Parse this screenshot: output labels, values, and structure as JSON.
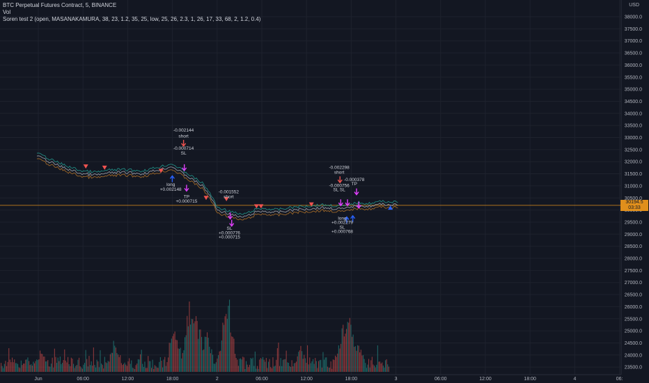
{
  "legend": {
    "symbol": "BTC Perpetual Futures Contract, 5, BINANCE",
    "vol": "Vol",
    "indicator": "Soren test 2 (open, MASANAKAMURA, 38, 23, 1.2, 35, 25, low, 25, 26, 2.3, 1, 26, 17, 33, 68, 2, 1.2, 0.4)"
  },
  "currency": "USD",
  "price_tag": {
    "price": "30194.5",
    "countdown": "03:33"
  },
  "colors": {
    "background": "#131722",
    "grid": "#1e222d",
    "line": "#e08f1c",
    "short": "#ef5350",
    "long": "#2962ff",
    "exit": "#e040fb",
    "vol_up": "#26a69a",
    "vol_down": "#ef5350"
  },
  "chart_data": {
    "type": "line",
    "ylim": [
      23450,
      38250
    ],
    "y_ticks": [
      "38000.0",
      "37500.0",
      "37000.0",
      "36500.0",
      "36000.0",
      "35500.0",
      "35000.0",
      "34500.0",
      "34000.0",
      "33500.0",
      "33000.0",
      "32500.0",
      "32000.0",
      "31500.0",
      "31000.0",
      "30500.0",
      "30000.0",
      "29500.0",
      "29000.0",
      "28500.0",
      "28000.0",
      "27500.0",
      "27000.0",
      "26500.0",
      "26000.0",
      "25500.0",
      "25000.0",
      "24500.0",
      "24000.0",
      "23500.0"
    ],
    "x_ticks": [
      "Jun",
      "06:00",
      "12:00",
      "18:00",
      "2",
      "06:00",
      "12:00",
      "18:00",
      "3",
      "06:00",
      "12:00",
      "18:00",
      "4",
      "06:"
    ],
    "current_price": 30194.5,
    "series": [
      {
        "x": [
          0,
          2,
          4,
          6,
          8,
          10,
          12,
          14,
          16,
          18,
          20,
          21,
          22,
          23,
          24,
          25,
          26,
          27,
          28,
          29,
          30,
          32,
          34,
          36,
          38,
          40,
          41,
          42,
          43,
          44,
          45,
          46,
          48
        ],
        "values": [
          32250,
          31950,
          31700,
          31500,
          31450,
          31550,
          31550,
          31500,
          31650,
          31800,
          31400,
          31200,
          31000,
          30600,
          30000,
          29900,
          29800,
          29700,
          29750,
          29900,
          29950,
          29900,
          30000,
          30050,
          30100,
          30050,
          30050,
          30150,
          30200,
          30150,
          30200,
          30250,
          30194.5
        ]
      }
    ],
    "annotations": [
      {
        "x": 19.5,
        "y": 33250,
        "text": "-0.002144",
        "kind": "label"
      },
      {
        "x": 19.5,
        "y": 33000,
        "text": "short",
        "kind": "label"
      },
      {
        "x": 19.5,
        "y": 32500,
        "text": "-0.000714",
        "kind": "label"
      },
      {
        "x": 19.5,
        "y": 32300,
        "text": "SL",
        "kind": "label"
      },
      {
        "x": 17.8,
        "y": 31000,
        "text": "long",
        "kind": "label"
      },
      {
        "x": 17.8,
        "y": 30800,
        "text": "+0.002148",
        "kind": "label"
      },
      {
        "x": 19.9,
        "y": 30500,
        "text": "TP",
        "kind": "label"
      },
      {
        "x": 19.9,
        "y": 30300,
        "text": "+0.000715",
        "kind": "label"
      },
      {
        "x": 25.5,
        "y": 30700,
        "text": "-0.001552",
        "kind": "label"
      },
      {
        "x": 25.5,
        "y": 30500,
        "text": "short",
        "kind": "label"
      },
      {
        "x": 25.6,
        "y": 29180,
        "text": "SL",
        "kind": "label"
      },
      {
        "x": 25.6,
        "y": 29000,
        "text": "+0.000776",
        "kind": "label"
      },
      {
        "x": 25.6,
        "y": 28820,
        "text": "+0.000715",
        "kind": "label"
      },
      {
        "x": 40.2,
        "y": 31700,
        "text": "-0.002298",
        "kind": "label"
      },
      {
        "x": 40.2,
        "y": 31500,
        "text": "short",
        "kind": "label"
      },
      {
        "x": 40.2,
        "y": 30950,
        "text": "-0.000756",
        "kind": "label"
      },
      {
        "x": 40.2,
        "y": 30780,
        "text": "SL SL",
        "kind": "label"
      },
      {
        "x": 42.2,
        "y": 31200,
        "text": "-0.000378",
        "kind": "label"
      },
      {
        "x": 42.2,
        "y": 31030,
        "text": "TP",
        "kind": "label"
      },
      {
        "x": 40.6,
        "y": 29600,
        "text": "long",
        "kind": "label"
      },
      {
        "x": 40.6,
        "y": 29420,
        "text": "+0.002279",
        "kind": "label"
      },
      {
        "x": 40.6,
        "y": 29220,
        "text": "SL",
        "kind": "label"
      },
      {
        "x": 40.6,
        "y": 29050,
        "text": "+0.000768",
        "kind": "label"
      }
    ],
    "markers": [
      {
        "x": 19.5,
        "y": 32760,
        "shape": "arrow-down",
        "color": "short"
      },
      {
        "x": 19.6,
        "y": 31750,
        "shape": "arrow-down",
        "color": "exit"
      },
      {
        "x": 18.0,
        "y": 31300,
        "shape": "arrow-up",
        "color": "long"
      },
      {
        "x": 19.9,
        "y": 30900,
        "shape": "arrow-down",
        "color": "exit"
      },
      {
        "x": 25.7,
        "y": 29750,
        "shape": "arrow-down",
        "color": "exit"
      },
      {
        "x": 25.9,
        "y": 29450,
        "shape": "arrow-down",
        "color": "exit"
      },
      {
        "x": 40.3,
        "y": 31250,
        "shape": "arrow-down",
        "color": "short"
      },
      {
        "x": 40.4,
        "y": 30300,
        "shape": "arrow-down",
        "color": "exit"
      },
      {
        "x": 41.3,
        "y": 30300,
        "shape": "arrow-down",
        "color": "exit"
      },
      {
        "x": 42.5,
        "y": 30750,
        "shape": "arrow-down",
        "color": "exit"
      },
      {
        "x": 42.8,
        "y": 30200,
        "shape": "arrow-down",
        "color": "exit"
      },
      {
        "x": 41.2,
        "y": 29600,
        "shape": "arrow-up",
        "color": "long"
      },
      {
        "x": 42.0,
        "y": 29650,
        "shape": "arrow-up",
        "color": "long"
      },
      {
        "x": 9.0,
        "y": 31750,
        "shape": "triangle-down",
        "color": "short"
      },
      {
        "x": 6.5,
        "y": 31800,
        "shape": "triangle-down",
        "color": "short"
      },
      {
        "x": 16.5,
        "y": 31620,
        "shape": "triangle-down",
        "color": "short"
      },
      {
        "x": 22.5,
        "y": 30500,
        "shape": "triangle-down",
        "color": "short"
      },
      {
        "x": 25.2,
        "y": 30450,
        "shape": "triangle-down",
        "color": "short"
      },
      {
        "x": 29.2,
        "y": 30150,
        "shape": "triangle-down",
        "color": "short"
      },
      {
        "x": 29.8,
        "y": 30150,
        "shape": "triangle-down",
        "color": "short"
      },
      {
        "x": 36.5,
        "y": 30230,
        "shape": "triangle-down",
        "color": "short"
      },
      {
        "x": 47.0,
        "y": 30100,
        "shape": "triangle-up",
        "color": "long"
      }
    ],
    "volume_spikes": [
      {
        "x": 20.3,
        "level": 0.85
      },
      {
        "x": 21.0,
        "level": 0.8
      },
      {
        "x": 21.6,
        "level": 0.55
      },
      {
        "x": 22.5,
        "level": 0.5
      },
      {
        "x": 25.3,
        "level": 1.0
      },
      {
        "x": 24.8,
        "level": 0.55
      },
      {
        "x": 18.3,
        "level": 0.6
      },
      {
        "x": 10.3,
        "level": 0.4
      },
      {
        "x": 41.1,
        "level": 0.78
      },
      {
        "x": 41.5,
        "level": 0.7
      },
      {
        "x": 40.5,
        "level": 0.5
      },
      {
        "x": 42.6,
        "level": 0.42
      },
      {
        "x": 35.0,
        "level": 0.3
      },
      {
        "x": 0.6,
        "level": 0.3
      }
    ]
  }
}
